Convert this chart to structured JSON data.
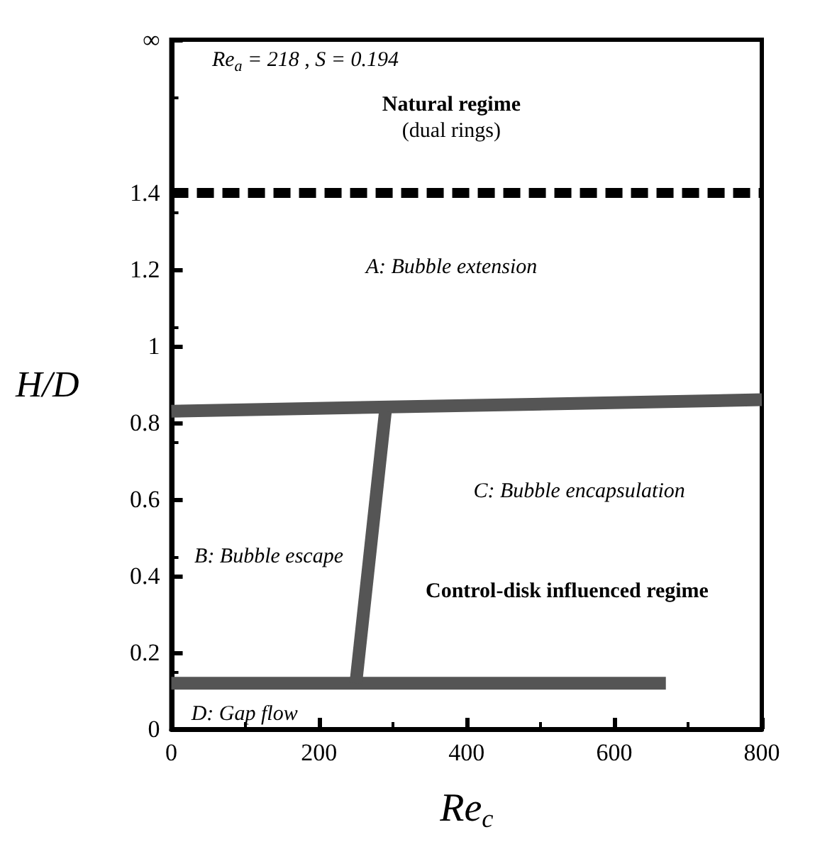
{
  "chart_data": {
    "type": "line",
    "xlabel": "Re$_{c}$",
    "ylabel": "H/D",
    "xlim": [
      0,
      800
    ],
    "xticks": [
      0,
      200,
      400,
      600,
      800
    ],
    "ylim": [
      0,
      1.8
    ],
    "yticks": [
      0,
      0.2,
      0.4,
      0.6,
      0.8,
      1.0,
      1.2,
      1.4,
      {
        "value": 1.8,
        "label": "∞"
      }
    ],
    "grid": false,
    "marker": "none",
    "series": [
      {
        "x": [
          0,
          800
        ],
        "values": [
          1.4,
          1.4
        ],
        "color": "#000000",
        "line_style": "dashed"
      },
      {
        "x": [
          0,
          800
        ],
        "values": [
          0.83,
          0.86
        ],
        "color": "#555555",
        "line_style": "solid"
      },
      {
        "x": [
          0,
          670
        ],
        "values": [
          0.12,
          0.12
        ],
        "color": "#555555",
        "line_style": "solid"
      },
      {
        "x": [
          250,
          290
        ],
        "values": [
          0.12,
          0.83
        ],
        "color": "#555555",
        "line_style": "solid"
      }
    ],
    "annotations": [
      "Re$_{a}$ = 218 , S = 0.194",
      "Natural regime",
      "(dual rings)",
      "A: Bubble extension",
      "B: Bubble escape",
      "C: Bubble encapsulation",
      "Control-disk influenced regime",
      "D: Gap flow"
    ]
  }
}
